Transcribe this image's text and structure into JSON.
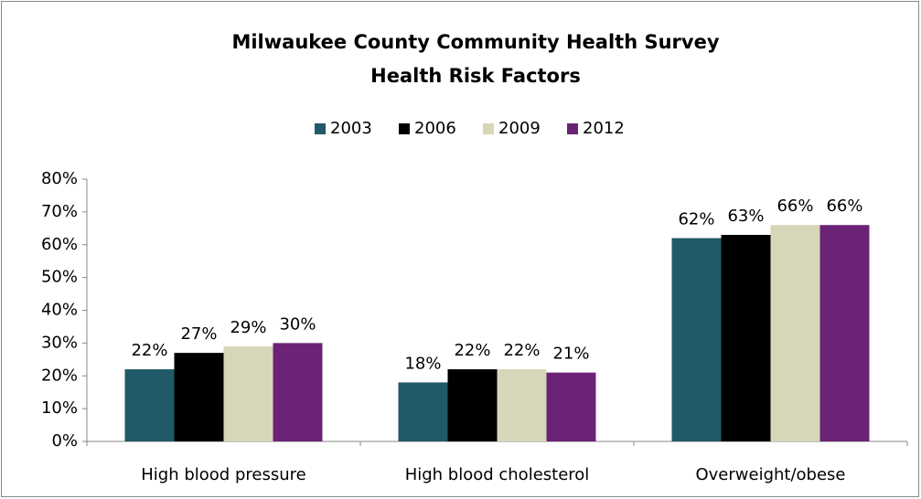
{
  "chart_data": {
    "type": "bar",
    "title": [
      "Milwaukee County Community Health Survey",
      "Health Risk Factors"
    ],
    "categories": [
      "High blood pressure",
      "High blood cholesterol",
      "Overweight/obese"
    ],
    "series": [
      {
        "name": "2003",
        "color": "#215968",
        "values": [
          22,
          18,
          62
        ],
        "value_labels": [
          "22%",
          "18%",
          "62%"
        ]
      },
      {
        "name": "2006",
        "color": "#000000",
        "values": [
          27,
          22,
          63
        ],
        "value_labels": [
          "27%",
          "22%",
          "63%"
        ]
      },
      {
        "name": "2009",
        "color": "#d8d6b8",
        "values": [
          29,
          22,
          66
        ],
        "value_labels": [
          "29%",
          "22%",
          "66%"
        ]
      },
      {
        "name": "2012",
        "color": "#6b2375",
        "values": [
          30,
          21,
          66
        ],
        "value_labels": [
          "30%",
          "21%",
          "66%"
        ]
      }
    ],
    "ylim": [
      0,
      80
    ],
    "yticks": [
      {
        "value": 0,
        "label": "0%"
      },
      {
        "value": 10,
        "label": "10%"
      },
      {
        "value": 20,
        "label": "20%"
      },
      {
        "value": 30,
        "label": "30%"
      },
      {
        "value": 40,
        "label": "40%"
      },
      {
        "value": 50,
        "label": "50%"
      },
      {
        "value": 60,
        "label": "60%"
      },
      {
        "value": 70,
        "label": "70%"
      },
      {
        "value": 80,
        "label": "80%"
      }
    ],
    "grid": false,
    "legend": "top"
  }
}
